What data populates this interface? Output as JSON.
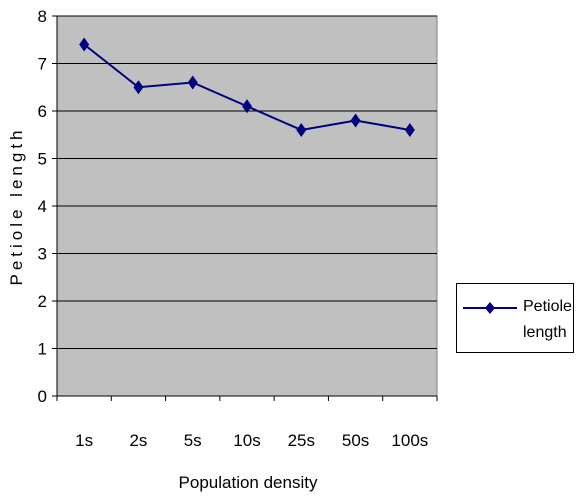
{
  "chart_data": {
    "type": "line",
    "x_label": "Population density",
    "y_label": "Petiole length",
    "categories": [
      "1s",
      "2s",
      "5s",
      "10s",
      "25s",
      "50s",
      "100s"
    ],
    "series": [
      {
        "name": "Petiole length",
        "color": "#000080",
        "values": [
          7.4,
          6.5,
          6.6,
          6.1,
          5.6,
          5.8,
          5.6
        ]
      }
    ],
    "ylim": [
      0,
      8
    ],
    "yticks": [
      0,
      1,
      2,
      3,
      4,
      5,
      6,
      7,
      8
    ],
    "grid": true,
    "plot_background": "#c0c0c0",
    "legend": "right"
  }
}
